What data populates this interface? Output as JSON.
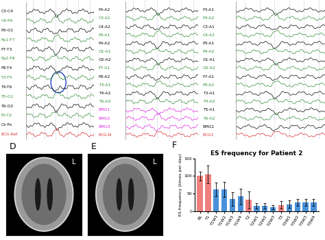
{
  "eeg_panels": [
    {
      "channels": [
        {
          "name": "C3-C4",
          "color": "#000000"
        },
        {
          "name": "C4-P4",
          "color": "#2e8b2e"
        },
        {
          "name": "P3-O1",
          "color": "#000000"
        },
        {
          "name": "Fp1-F7",
          "color": "#2e8b2e"
        },
        {
          "name": "F7-T3",
          "color": "#000000"
        },
        {
          "name": "Fp2-F8",
          "color": "#2e8b2e"
        },
        {
          "name": "F8-T4",
          "color": "#000000"
        },
        {
          "name": "T3-T5",
          "color": "#2e8b2e"
        },
        {
          "name": "T4-T6",
          "color": "#000000"
        },
        {
          "name": "T5-O1",
          "color": "#2e8b2e"
        },
        {
          "name": "T6-O2",
          "color": "#000000"
        },
        {
          "name": "Fz-Cz",
          "color": "#2e8b2e"
        },
        {
          "name": "Cz-Pz",
          "color": "#000000"
        },
        {
          "name": "ECG-Ref",
          "color": "#d62728"
        }
      ]
    },
    {
      "channels": [
        {
          "name": "F4-A2",
          "color": "#000000"
        },
        {
          "name": "C3-A1",
          "color": "#2e8b2e"
        },
        {
          "name": "C4-A2",
          "color": "#000000"
        },
        {
          "name": "P3-A1",
          "color": "#2e8b2e"
        },
        {
          "name": "P4-A2",
          "color": "#000000"
        },
        {
          "name": "O1-A1",
          "color": "#2e8b2e"
        },
        {
          "name": "O2-A2",
          "color": "#000000"
        },
        {
          "name": "F7-A1",
          "color": "#2e8b2e"
        },
        {
          "name": "F8-A2",
          "color": "#000000"
        },
        {
          "name": "T3-A1",
          "color": "#2e8b2e"
        },
        {
          "name": "T4-A2",
          "color": "#000000"
        },
        {
          "name": "T6-A2",
          "color": "#2e8b2e"
        },
        {
          "name": "EMG1",
          "color": "#e020e0"
        },
        {
          "name": "EMG2",
          "color": "#e020e0"
        },
        {
          "name": "EMG3",
          "color": "#e020e0"
        },
        {
          "name": "ECG-N",
          "color": "#d62728"
        }
      ]
    },
    {
      "channels": [
        {
          "name": "F3-A1",
          "color": "#000000"
        },
        {
          "name": "F4-A2",
          "color": "#2e8b2e"
        },
        {
          "name": "C3-A1",
          "color": "#000000"
        },
        {
          "name": "C4-A2",
          "color": "#2e8b2e"
        },
        {
          "name": "P3-A1",
          "color": "#000000"
        },
        {
          "name": "P4-A2",
          "color": "#2e8b2e"
        },
        {
          "name": "O1-A1",
          "color": "#000000"
        },
        {
          "name": "O2-A2",
          "color": "#2e8b2e"
        },
        {
          "name": "F7-A1",
          "color": "#000000"
        },
        {
          "name": "F8-A2",
          "color": "#2e8b2e"
        },
        {
          "name": "T3-A1",
          "color": "#000000"
        },
        {
          "name": "T4-A2",
          "color": "#2e8b2e"
        },
        {
          "name": "T5-A1",
          "color": "#000000"
        },
        {
          "name": "T6-A2",
          "color": "#2e8b2e"
        },
        {
          "name": "EMG1",
          "color": "#000000"
        },
        {
          "name": "ECG1",
          "color": "#d62728"
        }
      ]
    }
  ],
  "mri_panels": [
    {
      "label": "D",
      "side": "L"
    },
    {
      "label": "E",
      "side": "L"
    }
  ],
  "chart_data": {
    "type": "bar",
    "panel_label": "F",
    "title": "ES frequency for Patient 2",
    "y_label": "ES frequency (times per day)",
    "categories": [
      "BL",
      "T1",
      "T1W1",
      "T1W2",
      "T1W3",
      "T1W4",
      "T2",
      "T2W1",
      "T2W2",
      "T2W3",
      "T3",
      "T3W1",
      "T3W2",
      "T3W3",
      "T3W4"
    ],
    "values": [
      100,
      105,
      62,
      62,
      35,
      42,
      32,
      15,
      15,
      12,
      18,
      20,
      25,
      25,
      25
    ],
    "errors": [
      12,
      25,
      20,
      22,
      20,
      22,
      25,
      8,
      8,
      6,
      10,
      10,
      10,
      10,
      10
    ],
    "colors": [
      "#f08080",
      "#f08080",
      "#4a90d9",
      "#4a90d9",
      "#4a90d9",
      "#4a90d9",
      "#f08080",
      "#4a90d9",
      "#4a90d9",
      "#4a90d9",
      "#f08080",
      "#4a90d9",
      "#4a90d9",
      "#4a90d9",
      "#4a90d9"
    ],
    "ylim": [
      0,
      150
    ],
    "yticks": [
      0,
      50,
      100,
      150
    ]
  }
}
